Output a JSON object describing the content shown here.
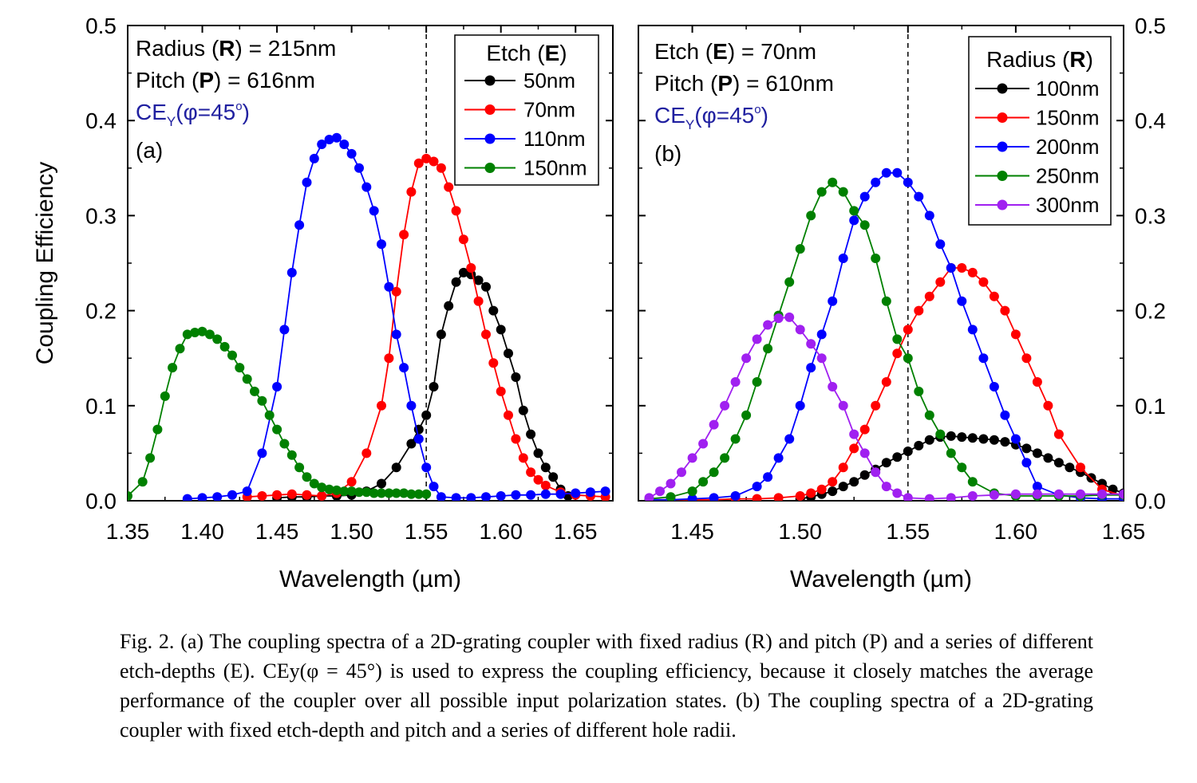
{
  "chart_data": [
    {
      "type": "line",
      "panel": "(a)",
      "xlabel": "Wavelength (µm)",
      "ylabel": "Coupling Efficiency",
      "xlim": [
        1.35,
        1.675
      ],
      "ylim": [
        0.0,
        0.5
      ],
      "xticks": [
        "1.35",
        "1.40",
        "1.45",
        "1.50",
        "1.55",
        "1.60",
        "1.65"
      ],
      "yticks": [
        "0.0",
        "0.1",
        "0.2",
        "0.3",
        "0.4",
        "0.5"
      ],
      "vline": 1.55,
      "annotations": [
        "Radius (R) = 215nm",
        "Pitch (P) = 616nm",
        "CE_Y(φ=45°)",
        "(a)"
      ],
      "legend_title": "Etch (E)",
      "legend_position": "top-right",
      "series": [
        {
          "name": "50nm",
          "color": "#000000",
          "x": [
            1.45,
            1.46,
            1.47,
            1.48,
            1.49,
            1.5,
            1.51,
            1.52,
            1.53,
            1.54,
            1.545,
            1.55,
            1.555,
            1.56,
            1.565,
            1.57,
            1.575,
            1.58,
            1.585,
            1.59,
            1.595,
            1.6,
            1.605,
            1.61,
            1.615,
            1.62,
            1.625,
            1.63,
            1.635,
            1.64,
            1.645
          ],
          "y": [
            0.003,
            0.004,
            0.004,
            0.005,
            0.005,
            0.006,
            0.01,
            0.018,
            0.035,
            0.06,
            0.075,
            0.09,
            0.12,
            0.175,
            0.205,
            0.23,
            0.24,
            0.238,
            0.232,
            0.225,
            0.2,
            0.18,
            0.155,
            0.13,
            0.095,
            0.07,
            0.05,
            0.035,
            0.025,
            0.012,
            0.005
          ]
        },
        {
          "name": "70nm",
          "color": "#ff0000",
          "x": [
            1.43,
            1.44,
            1.45,
            1.46,
            1.47,
            1.48,
            1.49,
            1.5,
            1.51,
            1.52,
            1.525,
            1.53,
            1.535,
            1.54,
            1.545,
            1.55,
            1.555,
            1.56,
            1.565,
            1.57,
            1.575,
            1.58,
            1.585,
            1.59,
            1.595,
            1.6,
            1.605,
            1.61,
            1.615,
            1.62,
            1.625,
            1.63,
            1.64,
            1.65,
            1.66,
            1.67
          ],
          "y": [
            0.004,
            0.005,
            0.006,
            0.007,
            0.006,
            0.005,
            0.008,
            0.02,
            0.05,
            0.1,
            0.15,
            0.22,
            0.28,
            0.325,
            0.355,
            0.36,
            0.357,
            0.35,
            0.33,
            0.305,
            0.275,
            0.245,
            0.21,
            0.175,
            0.145,
            0.115,
            0.09,
            0.065,
            0.045,
            0.03,
            0.022,
            0.016,
            0.009,
            0.006,
            0.005,
            0.004
          ]
        },
        {
          "name": "110nm",
          "color": "#0000ff",
          "x": [
            1.39,
            1.4,
            1.41,
            1.42,
            1.43,
            1.44,
            1.45,
            1.455,
            1.46,
            1.465,
            1.47,
            1.475,
            1.48,
            1.485,
            1.49,
            1.495,
            1.5,
            1.505,
            1.51,
            1.515,
            1.52,
            1.525,
            1.53,
            1.535,
            1.54,
            1.545,
            1.55,
            1.555,
            1.56,
            1.57,
            1.58,
            1.59,
            1.6,
            1.61,
            1.62,
            1.63,
            1.64,
            1.65,
            1.66,
            1.67
          ],
          "y": [
            0.002,
            0.003,
            0.004,
            0.006,
            0.01,
            0.05,
            0.12,
            0.18,
            0.24,
            0.29,
            0.335,
            0.36,
            0.375,
            0.38,
            0.382,
            0.375,
            0.365,
            0.35,
            0.33,
            0.305,
            0.27,
            0.225,
            0.175,
            0.14,
            0.1,
            0.065,
            0.035,
            0.015,
            0.004,
            0.003,
            0.003,
            0.004,
            0.005,
            0.006,
            0.006,
            0.007,
            0.007,
            0.008,
            0.009,
            0.01
          ]
        },
        {
          "name": "150nm",
          "color": "#008000",
          "x": [
            1.35,
            1.36,
            1.365,
            1.37,
            1.375,
            1.38,
            1.385,
            1.39,
            1.395,
            1.4,
            1.405,
            1.41,
            1.415,
            1.42,
            1.425,
            1.43,
            1.435,
            1.44,
            1.445,
            1.45,
            1.455,
            1.46,
            1.465,
            1.47,
            1.475,
            1.48,
            1.485,
            1.49,
            1.495,
            1.5,
            1.505,
            1.51,
            1.515,
            1.52,
            1.525,
            1.53,
            1.535,
            1.54,
            1.545,
            1.55
          ],
          "y": [
            0.005,
            0.02,
            0.045,
            0.075,
            0.11,
            0.14,
            0.16,
            0.175,
            0.177,
            0.178,
            0.175,
            0.17,
            0.162,
            0.153,
            0.14,
            0.128,
            0.115,
            0.105,
            0.09,
            0.075,
            0.06,
            0.048,
            0.035,
            0.025,
            0.018,
            0.014,
            0.012,
            0.011,
            0.01,
            0.01,
            0.009,
            0.009,
            0.008,
            0.008,
            0.008,
            0.008,
            0.008,
            0.007,
            0.007,
            0.007
          ]
        }
      ]
    },
    {
      "type": "line",
      "panel": "(b)",
      "xlabel": "Wavelength (µm)",
      "ylabel": "",
      "xlim": [
        1.425,
        1.65
      ],
      "ylim": [
        0.0,
        0.5
      ],
      "xticks": [
        "1.45",
        "1.50",
        "1.55",
        "1.60",
        "1.65"
      ],
      "yticks": [
        "0.0",
        "0.1",
        "0.2",
        "0.3",
        "0.4",
        "0.5"
      ],
      "vline": 1.55,
      "annotations": [
        "Etch (E) = 70nm",
        "Pitch (P) = 610nm",
        "CE_Y(φ=45°)",
        "(b)"
      ],
      "legend_title": "Radius (R)",
      "legend_position": "top-right",
      "series": [
        {
          "name": "100nm",
          "color": "#000000",
          "x": [
            1.5,
            1.505,
            1.51,
            1.515,
            1.52,
            1.525,
            1.53,
            1.535,
            1.54,
            1.545,
            1.55,
            1.555,
            1.56,
            1.565,
            1.57,
            1.575,
            1.58,
            1.585,
            1.59,
            1.595,
            1.6,
            1.605,
            1.61,
            1.615,
            1.62,
            1.625,
            1.63,
            1.635,
            1.64,
            1.645,
            1.65
          ],
          "y": [
            0.002,
            0.004,
            0.007,
            0.01,
            0.015,
            0.02,
            0.027,
            0.033,
            0.04,
            0.046,
            0.052,
            0.058,
            0.064,
            0.067,
            0.068,
            0.067,
            0.066,
            0.065,
            0.064,
            0.062,
            0.059,
            0.055,
            0.05,
            0.045,
            0.04,
            0.035,
            0.03,
            0.024,
            0.018,
            0.012,
            0.008
          ]
        },
        {
          "name": "150nm",
          "color": "#ff0000",
          "x": [
            1.43,
            1.44,
            1.45,
            1.46,
            1.47,
            1.48,
            1.49,
            1.5,
            1.505,
            1.51,
            1.515,
            1.52,
            1.525,
            1.53,
            1.535,
            1.54,
            1.545,
            1.55,
            1.555,
            1.56,
            1.565,
            1.57,
            1.575,
            1.58,
            1.585,
            1.59,
            1.595,
            1.6,
            1.605,
            1.61,
            1.615,
            1.62,
            1.63,
            1.64,
            1.65
          ],
          "y": [
            0.001,
            0.001,
            0.001,
            0.001,
            0.002,
            0.002,
            0.003,
            0.005,
            0.008,
            0.012,
            0.02,
            0.035,
            0.055,
            0.075,
            0.1,
            0.125,
            0.155,
            0.18,
            0.2,
            0.215,
            0.23,
            0.245,
            0.245,
            0.24,
            0.23,
            0.215,
            0.2,
            0.175,
            0.15,
            0.125,
            0.1,
            0.07,
            0.035,
            0.012,
            0.005
          ]
        },
        {
          "name": "200nm",
          "color": "#0000ff",
          "x": [
            1.43,
            1.44,
            1.45,
            1.46,
            1.47,
            1.48,
            1.485,
            1.49,
            1.495,
            1.5,
            1.505,
            1.51,
            1.515,
            1.52,
            1.525,
            1.53,
            1.535,
            1.54,
            1.545,
            1.55,
            1.555,
            1.56,
            1.565,
            1.57,
            1.575,
            1.58,
            1.585,
            1.59,
            1.595,
            1.6,
            1.605,
            1.61,
            1.62,
            1.63,
            1.64,
            1.65
          ],
          "y": [
            0.001,
            0.001,
            0.002,
            0.003,
            0.005,
            0.015,
            0.025,
            0.045,
            0.065,
            0.1,
            0.14,
            0.175,
            0.21,
            0.255,
            0.295,
            0.32,
            0.335,
            0.345,
            0.345,
            0.335,
            0.32,
            0.3,
            0.27,
            0.245,
            0.21,
            0.18,
            0.15,
            0.12,
            0.09,
            0.065,
            0.04,
            0.015,
            0.006,
            0.003,
            0.002,
            0.002
          ]
        },
        {
          "name": "250nm",
          "color": "#008000",
          "x": [
            1.43,
            1.44,
            1.45,
            1.455,
            1.46,
            1.465,
            1.47,
            1.475,
            1.48,
            1.485,
            1.49,
            1.495,
            1.5,
            1.505,
            1.51,
            1.515,
            1.52,
            1.525,
            1.53,
            1.535,
            1.54,
            1.545,
            1.55,
            1.555,
            1.56,
            1.565,
            1.57,
            1.575,
            1.58,
            1.59,
            1.6,
            1.61,
            1.62,
            1.63,
            1.64,
            1.65
          ],
          "y": [
            0.002,
            0.004,
            0.01,
            0.02,
            0.03,
            0.045,
            0.065,
            0.09,
            0.125,
            0.16,
            0.195,
            0.23,
            0.265,
            0.3,
            0.325,
            0.335,
            0.325,
            0.305,
            0.29,
            0.255,
            0.21,
            0.17,
            0.15,
            0.115,
            0.09,
            0.07,
            0.05,
            0.035,
            0.02,
            0.008,
            0.005,
            0.005,
            0.005,
            0.005,
            0.006,
            0.006
          ]
        },
        {
          "name": "300nm",
          "color": "#a020f0",
          "x": [
            1.43,
            1.435,
            1.44,
            1.445,
            1.45,
            1.455,
            1.46,
            1.465,
            1.47,
            1.475,
            1.48,
            1.485,
            1.49,
            1.495,
            1.5,
            1.505,
            1.51,
            1.515,
            1.52,
            1.525,
            1.53,
            1.535,
            1.54,
            1.545,
            1.55,
            1.56,
            1.57,
            1.58,
            1.59,
            1.6,
            1.61,
            1.62,
            1.63,
            1.64,
            1.65
          ],
          "y": [
            0.003,
            0.01,
            0.018,
            0.03,
            0.045,
            0.06,
            0.08,
            0.1,
            0.125,
            0.15,
            0.17,
            0.185,
            0.192,
            0.193,
            0.18,
            0.165,
            0.15,
            0.12,
            0.1,
            0.07,
            0.05,
            0.03,
            0.015,
            0.008,
            0.003,
            0.002,
            0.003,
            0.005,
            0.006,
            0.007,
            0.007,
            0.007,
            0.007,
            0.007,
            0.007
          ]
        }
      ]
    }
  ],
  "caption": {
    "fig_label": "Fig. 2.",
    "line1": "(a) The coupling spectra of a 2D-grating coupler with fixed radius (R) and pitch (P) and a series of different etch-depths (E). CEy(φ = 45°) is used to express the coupling efficiency, because it closely matches the average performance of the coupler over all possible input polarization states. (b) The coupling spectra of a 2D-grating coupler with fixed etch-depth and pitch and a series of different hole radii."
  }
}
